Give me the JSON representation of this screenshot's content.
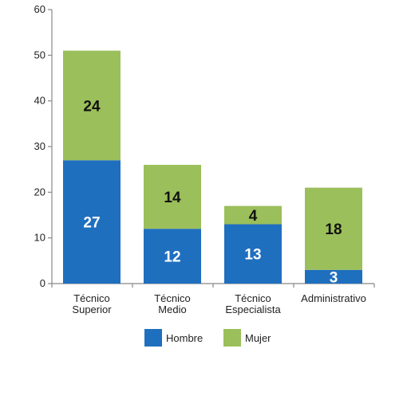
{
  "chart_data": {
    "type": "bar",
    "stacked": true,
    "categories": [
      [
        "Técnico",
        "Superior"
      ],
      [
        "Técnico",
        "Medio"
      ],
      [
        "Técnico",
        "Especialista"
      ],
      [
        "Administrativo"
      ]
    ],
    "series": [
      {
        "name": "Hombre",
        "values": [
          27,
          12,
          13,
          3
        ],
        "color": "#1f6fbf",
        "label_color": "#ffffff"
      },
      {
        "name": "Mujer",
        "values": [
          24,
          14,
          4,
          18
        ],
        "color": "#9bbf5a",
        "label_color": "#111111"
      }
    ],
    "ylim": [
      0,
      60
    ],
    "yticks": [
      0,
      10,
      20,
      30,
      40,
      50,
      60
    ],
    "grid": false,
    "legend_position": "bottom"
  }
}
